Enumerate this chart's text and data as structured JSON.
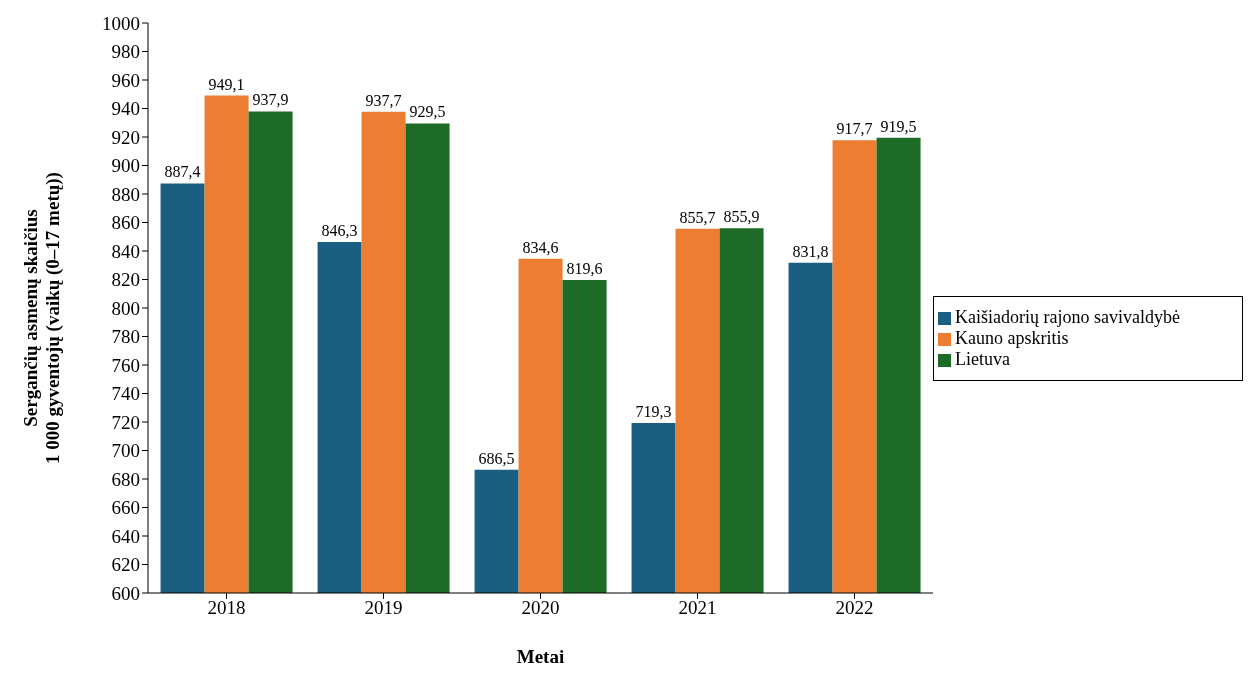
{
  "chart_data": {
    "type": "bar",
    "xlabel": "Metai",
    "ylabel": "Sergančių asmenų skaičius\n1 000 gyventojų (vaikų (0–17 metų))",
    "categories": [
      "2018",
      "2019",
      "2020",
      "2021",
      "2022"
    ],
    "series": [
      {
        "name": "Kaišiadorių rajono savivaldybė",
        "color": "#1a5f82",
        "values": [
          887.4,
          846.3,
          686.5,
          719.3,
          831.8
        ],
        "value_labels": [
          "887,4",
          "846,3",
          "686,5",
          "719,3",
          "831,8"
        ]
      },
      {
        "name": "Kauno apskritis",
        "color": "#ed7d31",
        "values": [
          949.1,
          937.7,
          834.6,
          855.7,
          917.7
        ],
        "value_labels": [
          "949,1",
          "937,7",
          "834,6",
          "855,7",
          "917,7"
        ]
      },
      {
        "name": "Lietuva",
        "color": "#1e6b28",
        "values": [
          937.9,
          929.5,
          819.6,
          855.9,
          919.5
        ],
        "value_labels": [
          "937,9",
          "929,5",
          "819,6",
          "855,9",
          "919,5"
        ]
      }
    ],
    "ylim": [
      600,
      1000
    ],
    "yticks": [
      600,
      620,
      640,
      660,
      680,
      700,
      720,
      740,
      760,
      780,
      800,
      820,
      840,
      860,
      880,
      900,
      920,
      940,
      960,
      980,
      1000
    ],
    "grid": false,
    "legend": "right"
  }
}
